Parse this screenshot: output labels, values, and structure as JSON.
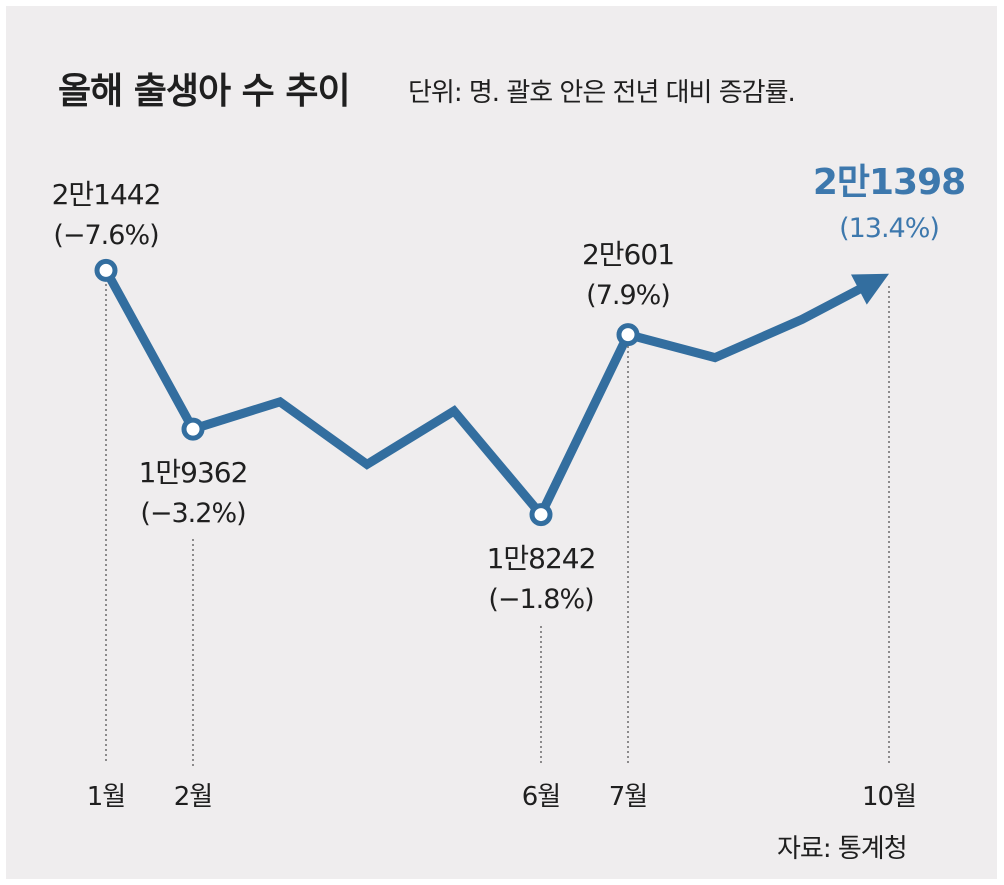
{
  "header": {
    "title": "올해 출생아 수 추이",
    "unit_note": "단위: 명. 괄호 안은 전년 대비 증감률."
  },
  "source": "자료: 통계청",
  "colors": {
    "line": "#336e9f",
    "highlight": "#3d78ad",
    "text": "#1f1f1f",
    "background": "#efedee"
  },
  "chart_data": {
    "type": "line",
    "title": "올해 출생아 수 추이",
    "xlabel": "",
    "ylabel": "단위: 명",
    "x": [
      1,
      2,
      3,
      4,
      5,
      6,
      7,
      8,
      9,
      10
    ],
    "values": [
      21442,
      19362,
      19720,
      18900,
      19600,
      18242,
      20601,
      20300,
      20800,
      21398
    ],
    "ylim": [
      17500,
      22000
    ],
    "grid": false,
    "labeled_points": [
      {
        "month": 1,
        "tick": "1월",
        "value_label": "2만1442",
        "change_label": "(−7.6%)",
        "change": -7.6
      },
      {
        "month": 2,
        "tick": "2월",
        "value_label": "1만9362",
        "change_label": "(−3.2%)",
        "change": -3.2
      },
      {
        "month": 6,
        "tick": "6월",
        "value_label": "1만8242",
        "change_label": "(−1.8%)",
        "change": -1.8
      },
      {
        "month": 7,
        "tick": "7월",
        "value_label": "2만601",
        "change_label": "(7.9%)",
        "change": 7.9
      },
      {
        "month": 10,
        "tick": "10월",
        "value_label": "2만1398",
        "change_label": "(13.4%)",
        "change": 13.4
      }
    ]
  }
}
